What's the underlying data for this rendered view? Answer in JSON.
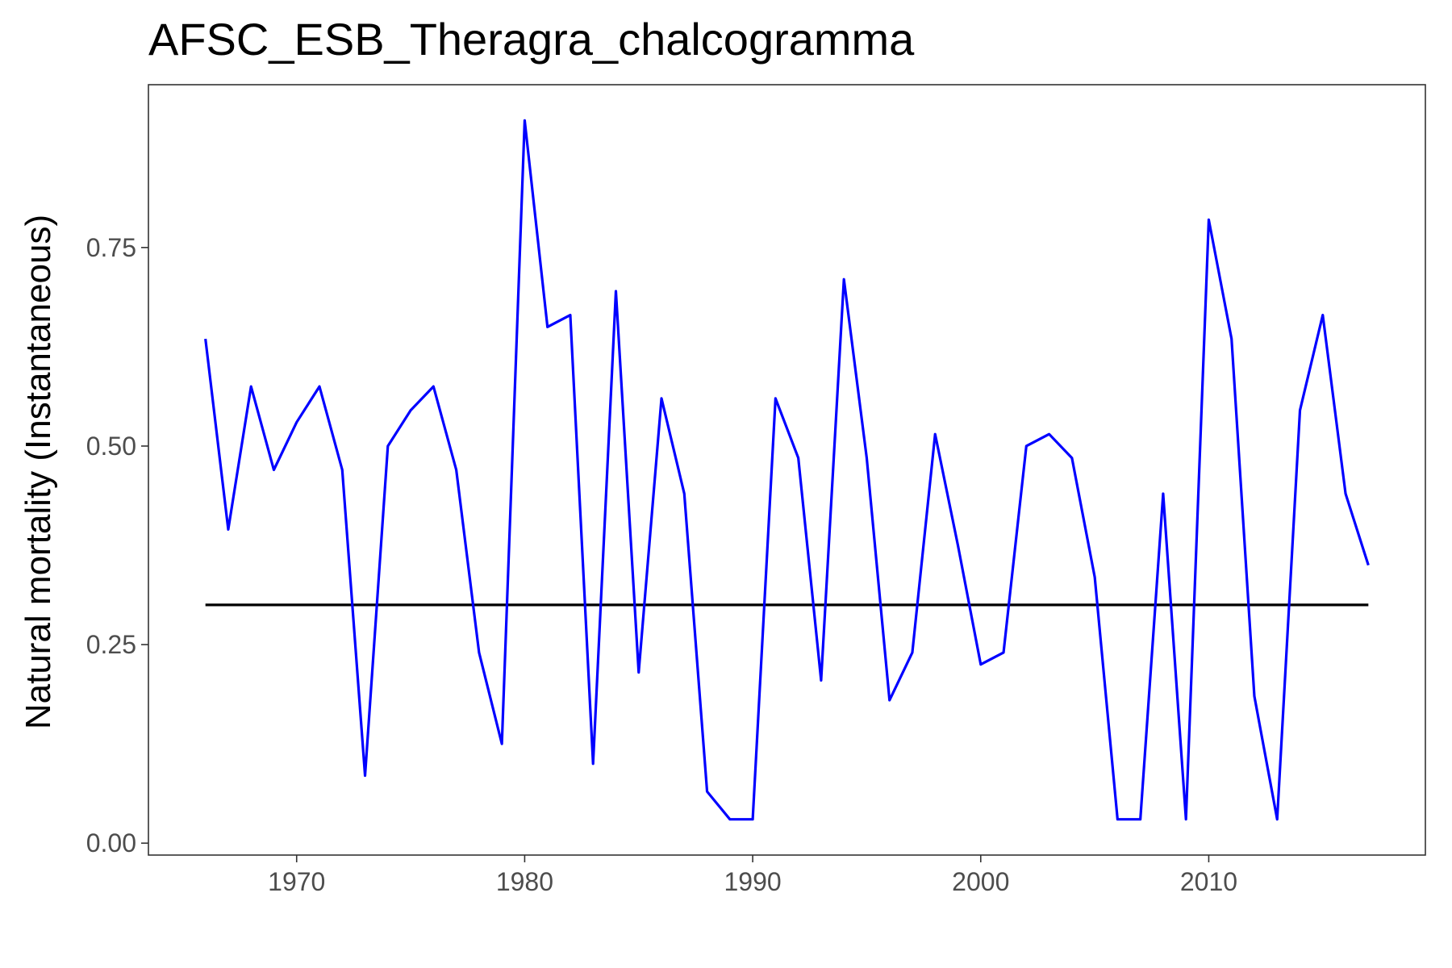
{
  "chart_data": {
    "type": "line",
    "title": "AFSC_ESB_Theragra_chalcogramma",
    "xlabel": "",
    "ylabel": "Natural mortality (Instantaneous)",
    "xlim": [
      1963.5,
      2019.5
    ],
    "ylim": [
      -0.015,
      0.955
    ],
    "x_ticks": [
      1970,
      1980,
      1990,
      2000,
      2010
    ],
    "y_ticks": [
      0.0,
      0.25,
      0.5,
      0.75
    ],
    "y_tick_labels": [
      "0.00",
      "0.25",
      "0.50",
      "0.75"
    ],
    "grid": false,
    "series": [
      {
        "color": "#0000ff",
        "x": [
          1966,
          1967,
          1968,
          1969,
          1970,
          1971,
          1972,
          1973,
          1974,
          1975,
          1976,
          1977,
          1978,
          1979,
          1980,
          1981,
          1982,
          1983,
          1984,
          1985,
          1986,
          1987,
          1988,
          1989,
          1990,
          1991,
          1992,
          1993,
          1994,
          1995,
          1996,
          1997,
          1998,
          1999,
          2000,
          2001,
          2002,
          2003,
          2004,
          2005,
          2006,
          2007,
          2008,
          2009,
          2010,
          2011,
          2012,
          2013,
          2014,
          2015,
          2016,
          2017
        ],
        "y": [
          0.635,
          0.395,
          0.575,
          0.47,
          0.53,
          0.575,
          0.47,
          0.085,
          0.5,
          0.545,
          0.575,
          0.47,
          0.24,
          0.125,
          0.91,
          0.65,
          0.665,
          0.1,
          0.695,
          0.215,
          0.56,
          0.44,
          0.065,
          0.03,
          0.03,
          0.56,
          0.485,
          0.205,
          0.71,
          0.485,
          0.18,
          0.24,
          0.515,
          0.375,
          0.225,
          0.24,
          0.5,
          0.515,
          0.485,
          0.335,
          0.03,
          0.03,
          0.44,
          0.03,
          0.785,
          0.635,
          0.185,
          0.03,
          0.545,
          0.665,
          0.44,
          0.35
        ]
      }
    ],
    "reference_line": {
      "color": "#000000",
      "x": [
        1966,
        2017
      ],
      "y": 0.3
    }
  }
}
